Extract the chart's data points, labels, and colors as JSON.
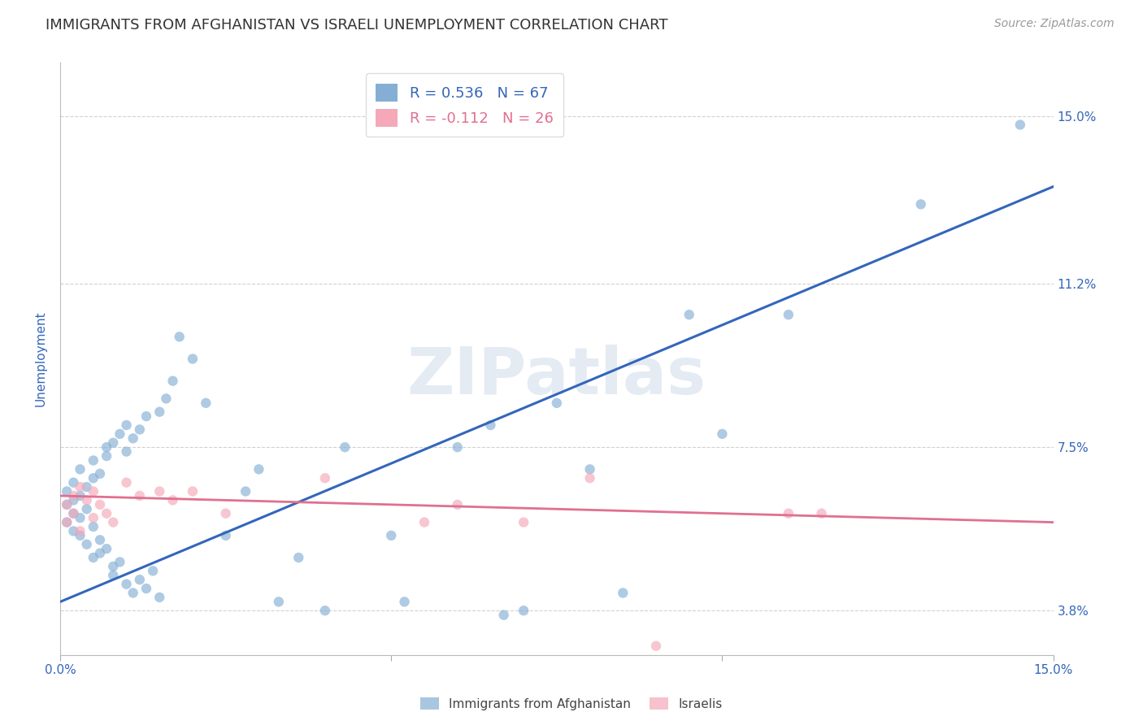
{
  "title": "IMMIGRANTS FROM AFGHANISTAN VS ISRAELI UNEMPLOYMENT CORRELATION CHART",
  "source": "Source: ZipAtlas.com",
  "ylabel": "Unemployment",
  "watermark": "ZIPatlas",
  "xlim": [
    0.0,
    0.15
  ],
  "ylim": [
    0.028,
    0.162
  ],
  "ytick_positions": [
    0.038,
    0.075,
    0.112,
    0.15
  ],
  "ytick_labels": [
    "3.8%",
    "7.5%",
    "11.2%",
    "15.0%"
  ],
  "blue_color": "#85aed4",
  "pink_color": "#f4a8b8",
  "blue_line_color": "#3366bb",
  "pink_line_color": "#e07090",
  "legend_r_blue": "R = 0.536",
  "legend_n_blue": "N = 67",
  "legend_r_pink": "R = -0.112",
  "legend_n_pink": "N = 26",
  "blue_scatter_x": [
    0.001,
    0.001,
    0.001,
    0.002,
    0.002,
    0.002,
    0.002,
    0.003,
    0.003,
    0.003,
    0.003,
    0.004,
    0.004,
    0.004,
    0.005,
    0.005,
    0.005,
    0.005,
    0.006,
    0.006,
    0.006,
    0.007,
    0.007,
    0.007,
    0.008,
    0.008,
    0.008,
    0.009,
    0.009,
    0.01,
    0.01,
    0.01,
    0.011,
    0.011,
    0.012,
    0.012,
    0.013,
    0.013,
    0.014,
    0.015,
    0.015,
    0.016,
    0.017,
    0.018,
    0.02,
    0.022,
    0.025,
    0.028,
    0.03,
    0.033,
    0.036,
    0.04,
    0.043,
    0.05,
    0.052,
    0.06,
    0.065,
    0.067,
    0.07,
    0.075,
    0.08,
    0.085,
    0.095,
    0.1,
    0.11,
    0.13,
    0.145
  ],
  "blue_scatter_y": [
    0.062,
    0.065,
    0.058,
    0.06,
    0.063,
    0.056,
    0.067,
    0.059,
    0.064,
    0.07,
    0.055,
    0.066,
    0.061,
    0.053,
    0.068,
    0.057,
    0.072,
    0.05,
    0.054,
    0.069,
    0.051,
    0.075,
    0.052,
    0.073,
    0.048,
    0.076,
    0.046,
    0.078,
    0.049,
    0.08,
    0.044,
    0.074,
    0.042,
    0.077,
    0.045,
    0.079,
    0.043,
    0.082,
    0.047,
    0.041,
    0.083,
    0.086,
    0.09,
    0.1,
    0.095,
    0.085,
    0.055,
    0.065,
    0.07,
    0.04,
    0.05,
    0.038,
    0.075,
    0.055,
    0.04,
    0.075,
    0.08,
    0.037,
    0.038,
    0.085,
    0.07,
    0.042,
    0.105,
    0.078,
    0.105,
    0.13,
    0.148
  ],
  "pink_scatter_x": [
    0.001,
    0.001,
    0.002,
    0.002,
    0.003,
    0.003,
    0.004,
    0.005,
    0.005,
    0.006,
    0.007,
    0.008,
    0.01,
    0.012,
    0.015,
    0.017,
    0.02,
    0.025,
    0.04,
    0.055,
    0.06,
    0.07,
    0.08,
    0.09,
    0.11,
    0.115
  ],
  "pink_scatter_y": [
    0.062,
    0.058,
    0.064,
    0.06,
    0.066,
    0.056,
    0.063,
    0.065,
    0.059,
    0.062,
    0.06,
    0.058,
    0.067,
    0.064,
    0.065,
    0.063,
    0.065,
    0.06,
    0.068,
    0.058,
    0.062,
    0.058,
    0.068,
    0.03,
    0.06,
    0.06
  ],
  "blue_line_y_start": 0.04,
  "blue_line_y_end": 0.134,
  "pink_line_y_start": 0.064,
  "pink_line_y_end": 0.058,
  "background_color": "#ffffff",
  "grid_color": "#cccccc",
  "title_color": "#333333",
  "axis_label_color": "#3366bb",
  "marker_size": 80,
  "legend_fontsize": 13,
  "title_fontsize": 13,
  "ylabel_fontsize": 11,
  "source_fontsize": 10
}
